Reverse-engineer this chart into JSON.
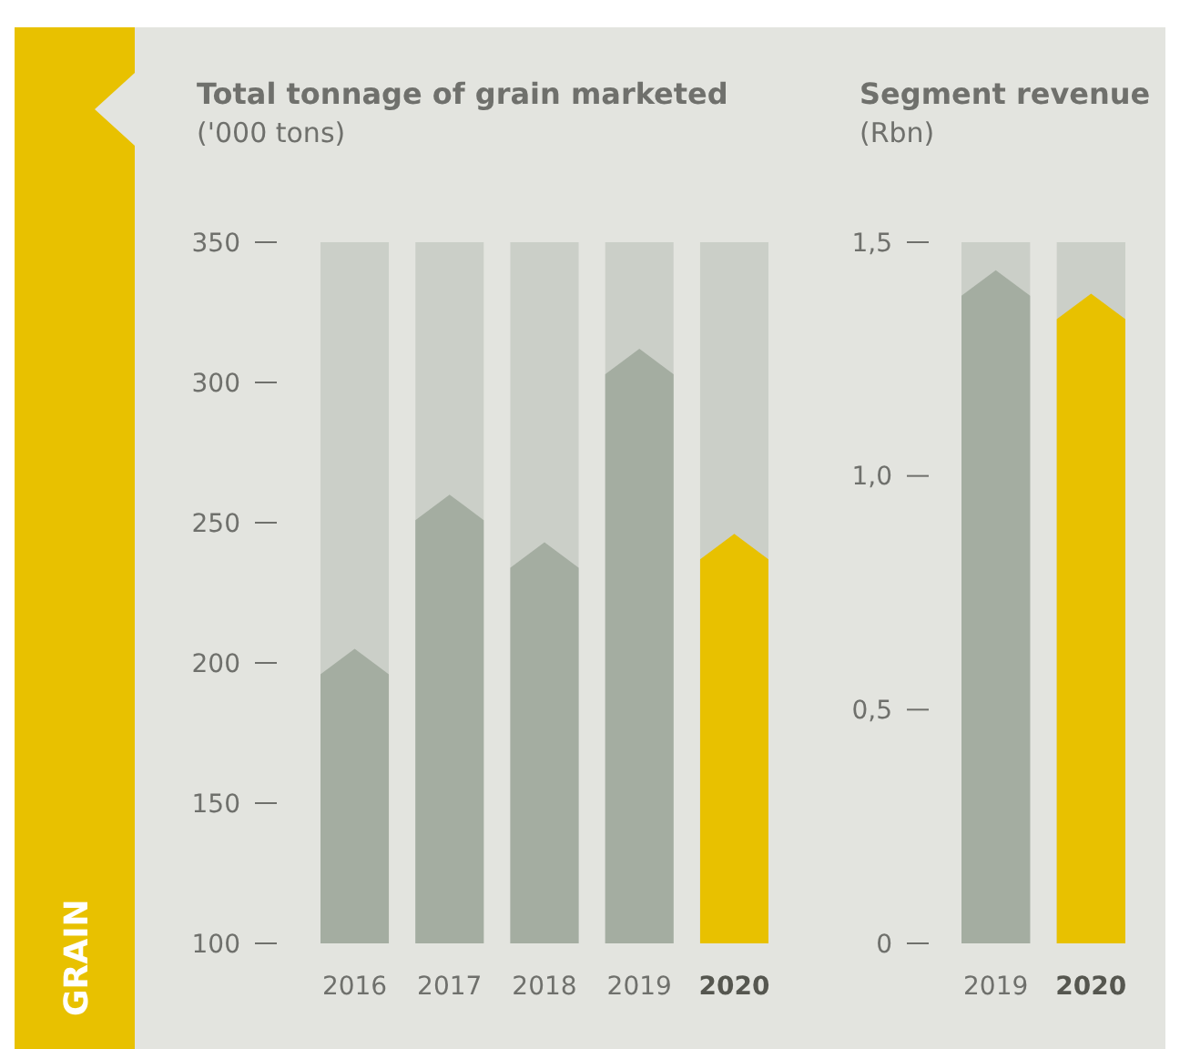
{
  "chart_data": [
    {
      "type": "bar",
      "title": "Total tonnage of grain marketed",
      "ylabel": "('000 tons)",
      "categories": [
        "2016",
        "2017",
        "2018",
        "2019",
        "2020"
      ],
      "values": [
        205,
        260,
        243,
        312,
        246
      ],
      "colors": [
        "#a4ada1",
        "#a4ada1",
        "#a4ada1",
        "#a4ada1",
        "#e8c100"
      ],
      "ylim": [
        100,
        350
      ],
      "yticks": [
        100,
        150,
        200,
        250,
        300,
        350
      ],
      "annotations": [
        "GRAIN"
      ]
    },
    {
      "type": "bar",
      "title": "Segment revenue",
      "ylabel": "(Rbn)",
      "categories": [
        "2019",
        "2020"
      ],
      "values": [
        1.44,
        1.39
      ],
      "colors": [
        "#a4ada1",
        "#e8c100"
      ],
      "ylim": [
        0,
        1.5
      ],
      "yticks": [
        {
          "value": 0,
          "label": "0"
        },
        {
          "value": 0.5,
          "label": "0,5"
        },
        {
          "value": 1,
          "label": "1,0"
        },
        {
          "value": 1.5,
          "label": "1,5"
        }
      ]
    }
  ]
}
